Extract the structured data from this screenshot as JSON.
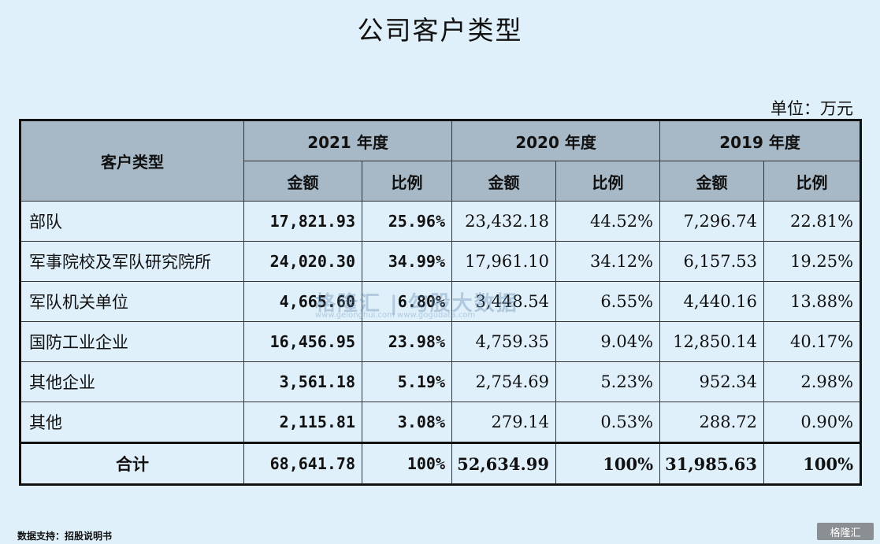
{
  "title": "公司客户类型",
  "unit": "单位：万元",
  "headers": {
    "category": "客户类型",
    "years": [
      "2021 年度",
      "2020 年度",
      "2019 年度"
    ],
    "amount": "金额",
    "ratio": "比例"
  },
  "rows": [
    {
      "cat": "部队",
      "v": [
        "17,821.93",
        "25.96%",
        "23,432.18",
        "44.52%",
        "7,296.74",
        "22.81%"
      ]
    },
    {
      "cat": "军事院校及军队研究院所",
      "v": [
        "24,020.30",
        "34.99%",
        "17,961.10",
        "34.12%",
        "6,157.53",
        "19.25%"
      ]
    },
    {
      "cat": "军队机关单位",
      "v": [
        "4,665.60",
        "6.80%",
        "3,448.54",
        "6.55%",
        "4,440.16",
        "13.88%"
      ]
    },
    {
      "cat": "国防工业企业",
      "v": [
        "16,456.95",
        "23.98%",
        "4,759.35",
        "9.04%",
        "12,850.14",
        "40.17%"
      ]
    },
    {
      "cat": "其他企业",
      "v": [
        "3,561.18",
        "5.19%",
        "2,754.69",
        "5.23%",
        "952.34",
        "2.98%"
      ]
    },
    {
      "cat": "其他",
      "v": [
        "2,115.81",
        "3.08%",
        "279.14",
        "0.53%",
        "288.72",
        "0.90%"
      ]
    },
    {
      "cat": "合计",
      "v": [
        "68,641.78",
        "100%",
        "52,634.99",
        "100%",
        "31,985.63",
        "100%"
      ]
    }
  ],
  "watermark": {
    "main": "格隆汇 | 勾股大数据",
    "sub": "www.gelonghui.com    www.gogudata.com"
  },
  "source": "数据支持：招股说明书",
  "logo": "格隆汇"
}
